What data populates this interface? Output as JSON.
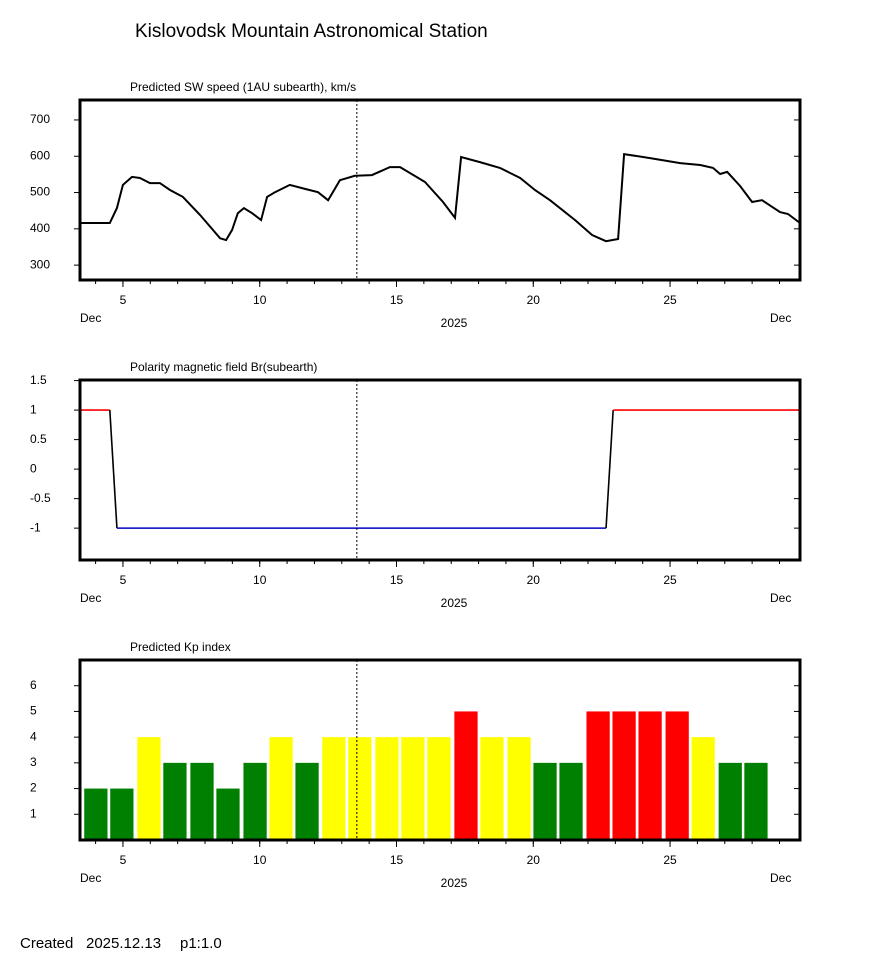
{
  "title": "Kislovodsk Mountain Astronomical Station",
  "footer": {
    "created": "Created",
    "date": "2025.12.13",
    "page": "p1:1.0"
  },
  "chart_data": [
    {
      "type": "line",
      "title": "Predicted SW speed (1AU subearth), km/s",
      "xlim": [
        3.43,
        29.75
      ],
      "xticks": [
        5,
        10,
        15,
        20,
        25
      ],
      "xminorticks": [
        4,
        5,
        6,
        7,
        8,
        9,
        10,
        11,
        12,
        13,
        14,
        15,
        16,
        17,
        18,
        19,
        20,
        21,
        22,
        23,
        24,
        25,
        26,
        27,
        28,
        29
      ],
      "x_start_label": "Dec",
      "x_end_label": "Dec",
      "x_year_label": "2025",
      "ylim": [
        259,
        755
      ],
      "yticks": [
        300,
        400,
        500,
        600,
        700
      ],
      "now_x": 13.55,
      "series": [
        {
          "color": "#000000",
          "x": [
            3.43,
            4.52,
            4.78,
            5.0,
            5.33,
            5.62,
            5.99,
            6.35,
            6.72,
            7.19,
            7.82,
            8.55,
            8.77,
            8.99,
            9.2,
            9.42,
            9.72,
            10.05,
            10.27,
            10.56,
            11.1,
            11.65,
            12.13,
            12.5,
            12.93,
            13.48,
            14.1,
            14.76,
            15.13,
            16.04,
            16.7,
            17.14,
            17.36,
            18.05,
            18.78,
            19.52,
            20.06,
            20.61,
            21.53,
            22.15,
            22.66,
            23.1,
            23.32,
            24.27,
            25.37,
            26.1,
            26.57,
            26.83,
            27.09,
            27.56,
            28.0,
            28.36,
            29.02,
            29.31,
            29.75
          ],
          "values": [
            416,
            416,
            457,
            521,
            543,
            540,
            526,
            526,
            507,
            488,
            438,
            374,
            369,
            397,
            443,
            457,
            443,
            424,
            488,
            501,
            521,
            510,
            501,
            479,
            534,
            546,
            548,
            570,
            570,
            529,
            474,
            430,
            598,
            584,
            568,
            540,
            507,
            479,
            424,
            383,
            366,
            372,
            606,
            595,
            581,
            576,
            568,
            551,
            557,
            518,
            474,
            479,
            446,
            441,
            416
          ]
        }
      ]
    },
    {
      "type": "line",
      "title": "Polarity magnetic field  Br(subearth)",
      "xlim": [
        3.43,
        29.75
      ],
      "xticks": [
        5,
        10,
        15,
        20,
        25
      ],
      "xminorticks": [
        4,
        5,
        6,
        7,
        8,
        9,
        10,
        11,
        12,
        13,
        14,
        15,
        16,
        17,
        18,
        19,
        20,
        21,
        22,
        23,
        24,
        25,
        26,
        27,
        28,
        29
      ],
      "x_start_label": "Dec",
      "x_end_label": "Dec",
      "x_year_label": "2025",
      "ylim": [
        -1.54,
        1.51
      ],
      "yticks": [
        -1,
        -0.5,
        0,
        0.5,
        1,
        1.5
      ],
      "now_x": 13.55,
      "series": [
        {
          "color": "#000000",
          "color_positive": "#ff0000",
          "color_negative": "#0000c0",
          "x": [
            3.43,
            4.52,
            4.78,
            22.66,
            22.92,
            29.75
          ],
          "values": [
            1,
            1,
            -1,
            -1,
            1,
            1
          ]
        }
      ]
    },
    {
      "type": "bar",
      "title": "Predicted Kp index",
      "xlim": [
        3.43,
        29.75
      ],
      "xticks": [
        5,
        10,
        15,
        20,
        25
      ],
      "xminorticks": [
        4,
        5,
        6,
        7,
        8,
        9,
        10,
        11,
        12,
        13,
        14,
        15,
        16,
        17,
        18,
        19,
        20,
        21,
        22,
        23,
        24,
        25,
        26,
        27,
        28,
        29
      ],
      "x_start_label": "Dec",
      "x_end_label": "Dec",
      "x_year_label": "2025",
      "ylim": [
        0,
        7
      ],
      "yticks": [
        1,
        2,
        3,
        4,
        5,
        6
      ],
      "now_x": 13.55,
      "x": [
        4.01,
        4.96,
        5.95,
        6.9,
        7.89,
        8.84,
        9.83,
        10.78,
        11.73,
        12.71,
        13.66,
        14.65,
        15.6,
        16.55,
        17.54,
        18.49,
        19.48,
        20.43,
        21.38,
        22.37,
        23.32,
        24.27,
        25.26,
        26.21,
        27.2,
        28.14
      ],
      "values": [
        2,
        2,
        4,
        3,
        3,
        2,
        3,
        4,
        3,
        4,
        4,
        4,
        4,
        4,
        5,
        4,
        4,
        3,
        3,
        5,
        5,
        5,
        5,
        4,
        3,
        3
      ],
      "colors": [
        "#008000",
        "#008000",
        "#ffff00",
        "#008000",
        "#008000",
        "#008000",
        "#008000",
        "#ffff00",
        "#008000",
        "#ffff00",
        "#ffff00",
        "#ffff00",
        "#ffff00",
        "#ffff00",
        "#ff0000",
        "#ffff00",
        "#ffff00",
        "#008000",
        "#008000",
        "#ff0000",
        "#ff0000",
        "#ff0000",
        "#ff0000",
        "#ffff00",
        "#008000",
        "#008000"
      ]
    }
  ]
}
